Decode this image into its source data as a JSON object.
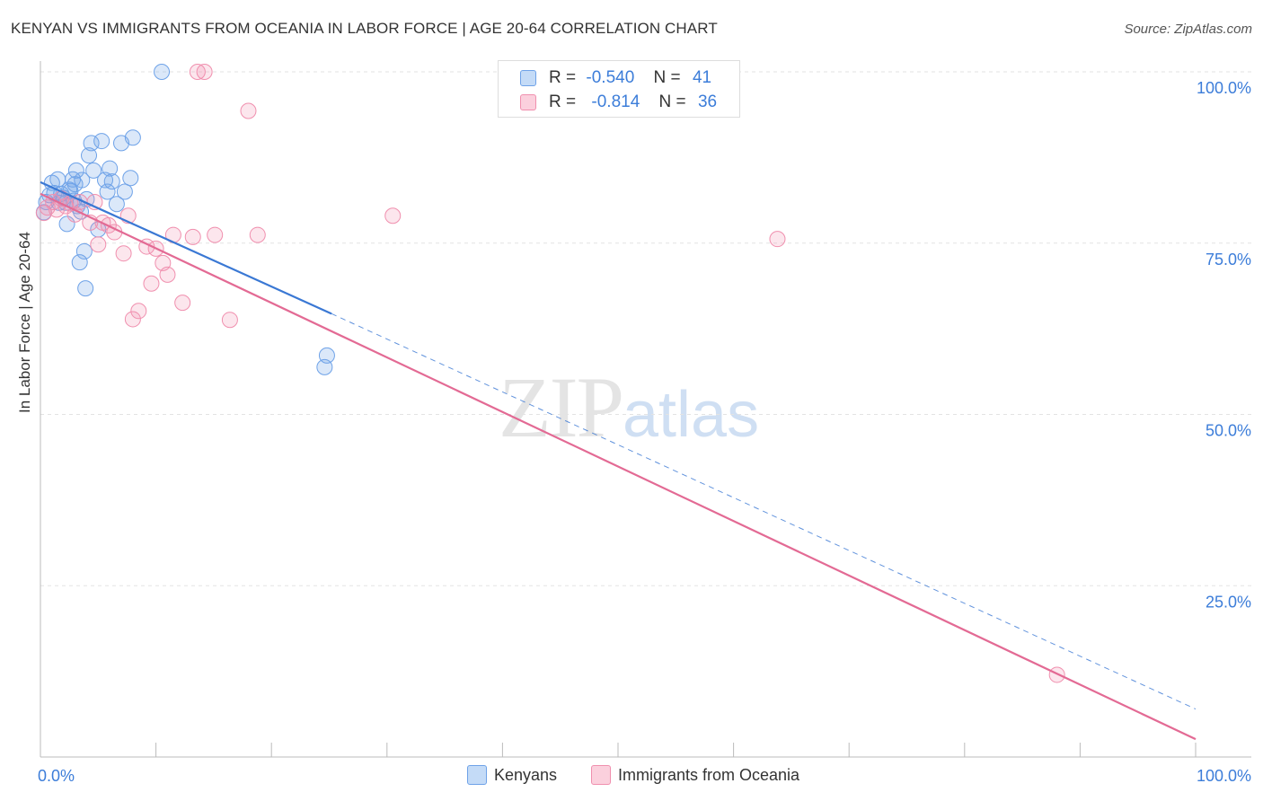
{
  "title": "KENYAN VS IMMIGRANTS FROM OCEANIA IN LABOR FORCE | AGE 20-64 CORRELATION CHART",
  "source": "Source: ZipAtlas.com",
  "watermark": {
    "zip": "ZIP",
    "atlas": "atlas"
  },
  "chart_data": {
    "type": "scatter",
    "title": "KENYAN VS IMMIGRANTS FROM OCEANIA IN LABOR FORCE | AGE 20-64 CORRELATION CHART",
    "xlabel": "",
    "ylabel": "In Labor Force | Age 20-64",
    "xlim": [
      0,
      100
    ],
    "ylim": [
      0,
      100
    ],
    "x_tick_labels": [
      "0.0%",
      "100.0%"
    ],
    "y_ticks": [
      25,
      50,
      75,
      100
    ],
    "y_tick_labels": [
      "25.0%",
      "50.0%",
      "75.0%",
      "100.0%"
    ],
    "grid": true,
    "colors": {
      "kenyans": "#6ea2e8",
      "oceania": "#f08fae",
      "kenyans_line": "#3a78d4",
      "oceania_line": "#e36a94"
    },
    "legend": [
      {
        "key": "kenyans",
        "r_label": "R =",
        "r_value": "-0.540",
        "n_label": "N =",
        "n_value": "41"
      },
      {
        "key": "oceania",
        "r_label": "R =",
        "r_value": "-0.814",
        "n_label": "N =",
        "n_value": "36"
      }
    ],
    "series": [
      {
        "name": "Kenyans",
        "key": "kenyans",
        "x": [
          0.3,
          0.5,
          0.8,
          1.0,
          1.2,
          1.5,
          1.6,
          1.8,
          2.0,
          2.2,
          2.3,
          2.5,
          2.6,
          2.8,
          2.9,
          3.0,
          3.1,
          3.2,
          3.4,
          3.5,
          3.6,
          3.8,
          3.9,
          4.0,
          4.2,
          4.4,
          4.6,
          5.0,
          5.3,
          5.6,
          5.8,
          6.0,
          6.2,
          6.6,
          7.0,
          7.3,
          7.8,
          8.0,
          10.5,
          24.8,
          24.6
        ],
        "y": [
          79.5,
          81.0,
          82.0,
          83.8,
          82.3,
          84.3,
          80.9,
          82.2,
          81.6,
          80.9,
          77.8,
          82.8,
          82.6,
          84.3,
          81.2,
          83.6,
          85.6,
          80.4,
          72.2,
          79.6,
          84.2,
          73.8,
          68.4,
          81.4,
          87.8,
          89.6,
          85.6,
          77.0,
          89.9,
          84.2,
          82.5,
          85.9,
          84.0,
          80.7,
          89.6,
          82.5,
          84.5,
          90.4,
          100.0,
          58.6,
          56.9
        ]
      },
      {
        "name": "Immigrants from Oceania",
        "key": "oceania",
        "x": [
          0.3,
          0.6,
          1.1,
          1.4,
          1.8,
          2.2,
          2.6,
          3.0,
          3.4,
          4.3,
          4.7,
          5.0,
          5.4,
          5.9,
          6.4,
          7.2,
          7.6,
          8.0,
          8.5,
          9.2,
          9.6,
          10.0,
          10.6,
          11.0,
          11.5,
          12.3,
          13.2,
          13.6,
          14.2,
          15.1,
          16.4,
          18.0,
          18.8,
          30.5,
          63.8,
          88.0
        ],
        "y": [
          79.4,
          80.2,
          81.0,
          79.9,
          81.5,
          80.4,
          80.8,
          79.2,
          81.0,
          78.0,
          81.0,
          74.8,
          78.0,
          77.6,
          76.6,
          73.5,
          79.0,
          63.9,
          65.1,
          74.5,
          69.1,
          74.2,
          72.1,
          70.4,
          76.2,
          66.3,
          75.9,
          100.0,
          100.0,
          76.2,
          63.8,
          94.3,
          76.2,
          79.0,
          75.6,
          12.0
        ]
      }
    ],
    "trend_lines": [
      {
        "series": "kenyans",
        "x": [
          0,
          25.2
        ],
        "y": [
          83.9,
          64.7
        ],
        "dashed_extension": {
          "x": [
            25.2,
            100
          ],
          "y": [
            64.7,
            7.0
          ]
        }
      },
      {
        "series": "oceania",
        "x": [
          0,
          100
        ],
        "y": [
          82.2,
          2.6
        ]
      }
    ]
  },
  "legend_bottom": [
    {
      "key": "kenyans",
      "label": "Kenyans"
    },
    {
      "key": "oceania",
      "label": "Immigrants from Oceania"
    }
  ]
}
